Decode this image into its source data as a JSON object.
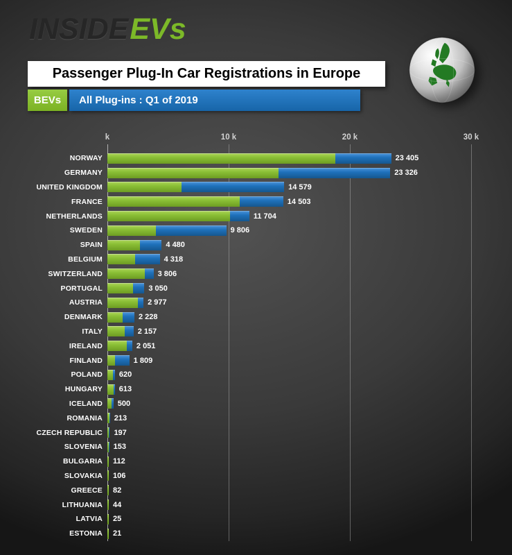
{
  "logo": {
    "inside": "INSIDE",
    "evs": "EVs"
  },
  "title": "Passenger Plug-In Car Registrations in Europe",
  "legend": {
    "bevs": "BEVs",
    "all_plugins": "All Plug-ins : Q1 of 2019"
  },
  "colors": {
    "background": "#3a3a3a",
    "plugin_blue": "#1f71bc",
    "bev_green": "#8abf35",
    "title_bg": "#ffffff",
    "title_text": "#000000",
    "label_text": "#ffffff",
    "tick_text": "#d2d2d2"
  },
  "chart_data": {
    "type": "bar",
    "orientation": "horizontal",
    "title": "Passenger Plug-In Car Registrations in Europe",
    "subtitle": "All Plug-ins : Q1 of 2019",
    "xlim": [
      0,
      30000
    ],
    "x_ticks": [
      {
        "value": 0,
        "label": "k"
      },
      {
        "value": 10000,
        "label": "10 k"
      },
      {
        "value": 20000,
        "label": "20 k"
      },
      {
        "value": 30000,
        "label": "30 k"
      }
    ],
    "grid": "vertical",
    "legend_position": "top-left",
    "categories": [
      "NORWAY",
      "GERMANY",
      "UNITED KINGDOM",
      "FRANCE",
      "NETHERLANDS",
      "SWEDEN",
      "SPAIN",
      "BELGIUM",
      "SWITZERLAND",
      "PORTUGAL",
      "AUSTRIA",
      "DENMARK",
      "ITALY",
      "IRELAND",
      "FINLAND",
      "POLAND",
      "HUNGARY",
      "ICELAND",
      "ROMANIA",
      "CZECH REPUBLIC",
      "SLOVENIA",
      "BULGARIA",
      "SLOVAKIA",
      "GREECE",
      "LITHUANIA",
      "LATVIA",
      "ESTONIA"
    ],
    "series": [
      {
        "name": "All Plug-ins",
        "color": "#1f71bc",
        "values": [
          23405,
          23326,
          14579,
          14503,
          11704,
          9806,
          4480,
          4318,
          3806,
          3050,
          2977,
          2228,
          2157,
          2051,
          1809,
          620,
          613,
          500,
          213,
          197,
          153,
          112,
          106,
          82,
          44,
          25,
          21
        ],
        "labels": [
          "23 405",
          "23 326",
          "14 579",
          "14 503",
          "11 704",
          "9 806",
          "4 480",
          "4 318",
          "3 806",
          "3 050",
          "2 977",
          "2 228",
          "2 157",
          "2 051",
          "1 809",
          "620",
          "613",
          "500",
          "213",
          "197",
          "153",
          "112",
          "106",
          "82",
          "44",
          "25",
          "21"
        ]
      },
      {
        "name": "BEVs",
        "color": "#8abf35",
        "values": [
          18800,
          14100,
          6100,
          10900,
          10100,
          4000,
          2700,
          2300,
          3100,
          2100,
          2500,
          1250,
          1450,
          1600,
          600,
          450,
          500,
          350,
          170,
          120,
          110,
          80,
          80,
          55,
          30,
          18,
          15
        ],
        "values_note": "estimated from bar lengths (not labeled in chart)"
      }
    ]
  }
}
